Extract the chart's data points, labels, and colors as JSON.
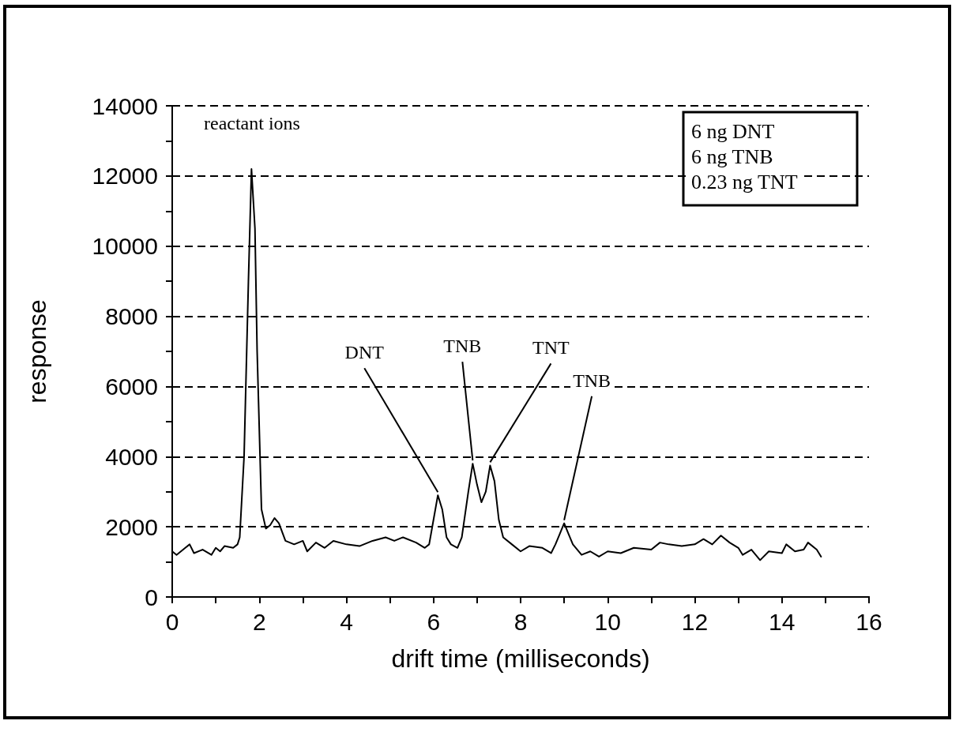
{
  "chart_data": {
    "type": "line",
    "xlabel": "drift time (milliseconds)",
    "ylabel": "response",
    "xlim": [
      0,
      16
    ],
    "xticks": [
      0,
      {
        "value": 1,
        "label": null
      },
      2,
      {
        "value": 3,
        "label": null
      },
      4,
      {
        "value": 5,
        "label": null
      },
      6,
      {
        "value": 7,
        "label": null
      },
      8,
      {
        "value": 9,
        "label": null
      },
      10,
      {
        "value": 11,
        "label": null
      },
      12,
      {
        "value": 13,
        "label": null
      },
      14,
      {
        "value": 15,
        "label": null
      },
      16
    ],
    "ylim": [
      0,
      14000
    ],
    "yticks": [
      0,
      {
        "value": 1000,
        "label": null
      },
      2000,
      {
        "value": 3000,
        "label": null
      },
      4000,
      {
        "value": 5000,
        "label": null
      },
      6000,
      {
        "value": 7000,
        "label": null
      },
      8000,
      {
        "value": 9000,
        "label": null
      },
      10000,
      {
        "value": 11000,
        "label": null
      },
      12000,
      {
        "value": 13000,
        "label": null
      },
      14000
    ],
    "grid": "y",
    "marker": "none",
    "line_style": "solid",
    "x": [
      0,
      0.1,
      0.3,
      0.4,
      0.5,
      0.7,
      0.9,
      1.0,
      1.1,
      1.2,
      1.4,
      1.5,
      1.55,
      1.65,
      1.75,
      1.82,
      1.9,
      1.95,
      2.05,
      2.15,
      2.25,
      2.35,
      2.45,
      2.6,
      2.8,
      3.0,
      3.1,
      3.3,
      3.5,
      3.7,
      4.0,
      4.3,
      4.6,
      4.9,
      5.1,
      5.3,
      5.6,
      5.8,
      5.9,
      6.0,
      6.1,
      6.2,
      6.3,
      6.4,
      6.55,
      6.65,
      6.8,
      6.9,
      7.0,
      7.1,
      7.2,
      7.3,
      7.4,
      7.5,
      7.6,
      7.8,
      8.0,
      8.2,
      8.5,
      8.7,
      8.8,
      8.9,
      9.0,
      9.1,
      9.2,
      9.4,
      9.6,
      9.8,
      10.0,
      10.3,
      10.6,
      11.0,
      11.2,
      11.4,
      11.7,
      12.0,
      12.2,
      12.4,
      12.6,
      12.8,
      13.0,
      13.1,
      13.3,
      13.5,
      13.7,
      14.0,
      14.1,
      14.3,
      14.5,
      14.6,
      14.8,
      14.9
    ],
    "series": [
      {
        "color": "#000000",
        "values": [
          1300,
          1200,
          1400,
          1500,
          1250,
          1350,
          1200,
          1400,
          1300,
          1450,
          1400,
          1500,
          1700,
          4000,
          9000,
          12200,
          10500,
          7000,
          2500,
          1950,
          2050,
          2250,
          2100,
          1600,
          1500,
          1600,
          1300,
          1550,
          1400,
          1600,
          1500,
          1450,
          1600,
          1700,
          1600,
          1700,
          1550,
          1400,
          1500,
          2200,
          2900,
          2500,
          1700,
          1500,
          1400,
          1700,
          3000,
          3800,
          3200,
          2700,
          3000,
          3750,
          3300,
          2200,
          1700,
          1500,
          1300,
          1450,
          1400,
          1250,
          1500,
          1800,
          2100,
          1800,
          1500,
          1200,
          1300,
          1150,
          1300,
          1250,
          1400,
          1350,
          1550,
          1500,
          1450,
          1500,
          1650,
          1500,
          1750,
          1550,
          1400,
          1200,
          1350,
          1050,
          1300,
          1250,
          1500,
          1300,
          1350,
          1550,
          1350,
          1150
        ]
      }
    ],
    "annotations": [
      "reactant ions",
      "6 ng DNT",
      "6 ng TNB",
      "0.23 ng TNT",
      {
        "text": "DNT",
        "x": 6.1,
        "y": 2900
      },
      {
        "text": "TNB",
        "x": 6.9,
        "y": 3800
      },
      {
        "text": "TNT",
        "x": 7.3,
        "y": 3750
      },
      {
        "text": "TNB",
        "x": 9.0,
        "y": 2100
      }
    ]
  }
}
